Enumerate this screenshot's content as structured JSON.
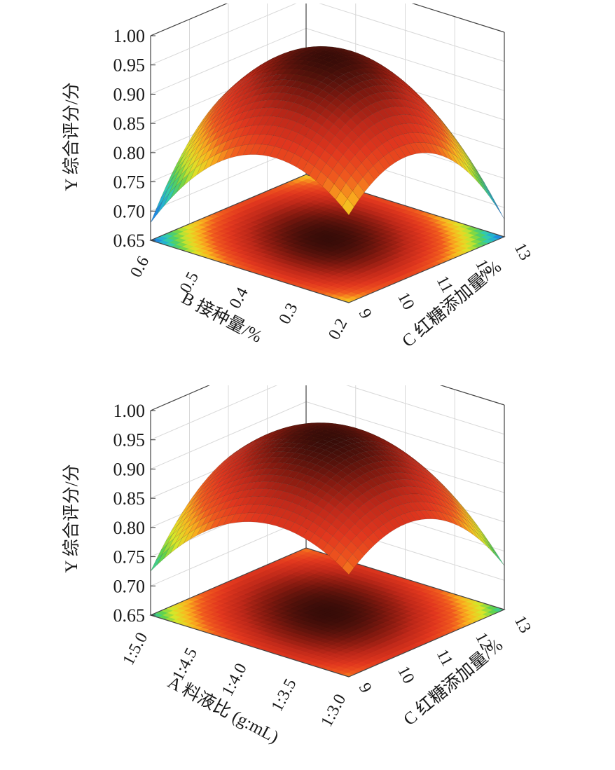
{
  "chart_data": [
    {
      "type": "surface",
      "zlabel": "Y 综合评分/分",
      "xlabel": "B 接种量/%",
      "ylabel": "C 红糖添加量/%",
      "z_ticks": [
        "0.65",
        "0.70",
        "0.75",
        "0.80",
        "0.85",
        "0.90",
        "0.95",
        "1.00"
      ],
      "x_ticks": [
        "0.6",
        "0.5",
        "0.4",
        "0.3",
        "0.2"
      ],
      "y_ticks": [
        "9",
        "10",
        "11",
        "12",
        "13"
      ],
      "zlim": [
        0.65,
        1.0
      ],
      "xlim": [
        0.6,
        0.2
      ],
      "ylim": [
        9,
        13
      ],
      "peak": {
        "x": 0.4,
        "y": 11,
        "z": 0.96
      },
      "corner_values": {
        "x_max_y_min": 0.68,
        "x_min_y_max": 0.68,
        "x_max_y_max": 0.8,
        "x_min_y_min": 0.8
      },
      "contour_on_floor": true,
      "colormap": "jet"
    },
    {
      "type": "surface",
      "zlabel": "Y 综合评分/分",
      "xlabel": "A 料液比 (g:mL)",
      "ylabel": "C 红糖添加量/%",
      "z_ticks": [
        "0.65",
        "0.70",
        "0.75",
        "0.80",
        "0.85",
        "0.90",
        "0.95",
        "1.00"
      ],
      "x_ticks": [
        "1:5.0",
        "1:4.5",
        "1:4.0",
        "1:3.5",
        "1:3.0"
      ],
      "y_ticks": [
        "9",
        "10",
        "11",
        "12",
        "13"
      ],
      "zlim": [
        0.65,
        1.0
      ],
      "xlim": [
        5.0,
        3.0
      ],
      "ylim": [
        9,
        13
      ],
      "peak": {
        "x": 4.0,
        "y": 11,
        "z": 0.95
      },
      "corner_values": {
        "x_max_y_min": 0.7,
        "x_min_y_max": 0.75,
        "x_max_y_max": 0.79,
        "x_min_y_min": 0.86
      },
      "contour_on_floor": true,
      "colormap": "jet"
    }
  ]
}
